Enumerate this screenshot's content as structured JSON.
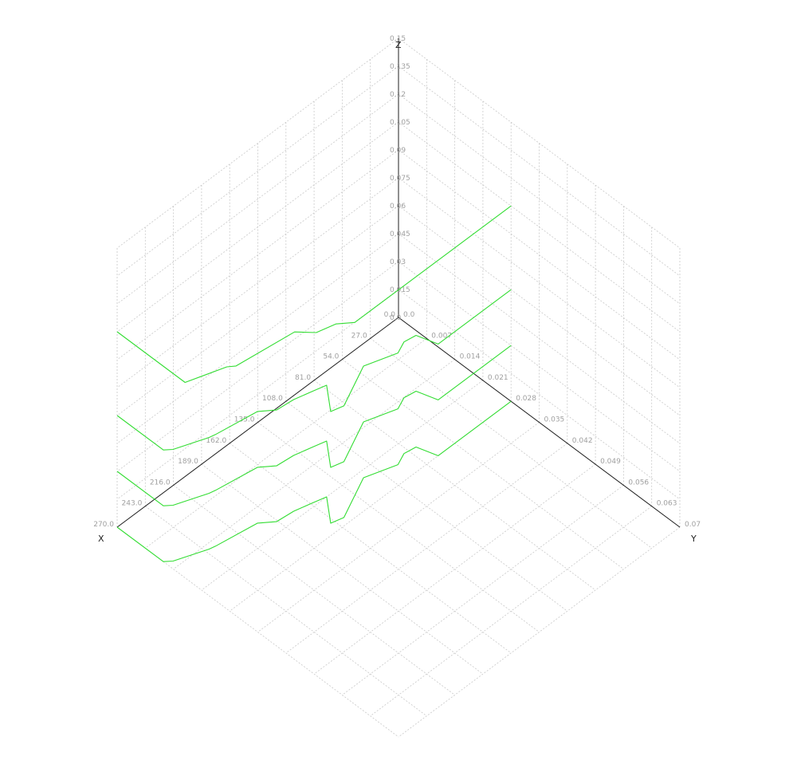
{
  "chart_data": {
    "type": "line",
    "projection": "3d-isometric",
    "axes": {
      "x": {
        "label": "X",
        "range": [
          0,
          270
        ],
        "ticks": [
          "0.0",
          "27.0",
          "54.0",
          "81.0",
          "108.0",
          "135.0",
          "162.0",
          "189.0",
          "216.0",
          "243.0",
          "270.0"
        ]
      },
      "y": {
        "label": "Y",
        "range": [
          0,
          0.07
        ],
        "ticks": [
          "0.0",
          "0.007",
          "0.014",
          "0.021",
          "0.028",
          "0.035",
          "0.042",
          "0.049",
          "0.056",
          "0.063",
          "0.07"
        ]
      },
      "z": {
        "label": "Z",
        "range": [
          0,
          0.15
        ],
        "ticks": [
          "0.0",
          "0.015",
          "0.03",
          "0.045",
          "0.06",
          "0.075",
          "0.09",
          "0.105",
          "0.12",
          "0.135",
          "0.15"
        ]
      }
    },
    "grid": true,
    "line_color": "#33dd33",
    "series": [
      {
        "z": 0.105,
        "points": [
          [
            0,
            0.028
          ],
          [
            150,
            0.028
          ],
          [
            160,
            0.0259
          ],
          [
            175,
            0.0249
          ],
          [
            185,
            0.0221
          ],
          [
            235,
            0.0205
          ],
          [
            240,
            0.0195
          ],
          [
            270,
            0.0169
          ],
          [
            270,
            0
          ]
        ]
      },
      {
        "z": 0.06,
        "points": [
          [
            0,
            0.028
          ],
          [
            70,
            0.028
          ],
          [
            75,
            0.0238
          ],
          [
            85,
            0.0234
          ],
          [
            95,
            0.0245
          ],
          [
            120,
            0.0224
          ],
          [
            155,
            0.0266
          ],
          [
            165,
            0.0259
          ],
          [
            150,
            0.021
          ],
          [
            160,
            0.0203
          ],
          [
            175,
            0.0193
          ],
          [
            190,
            0.0189
          ],
          [
            200,
            0.0168
          ],
          [
            235,
            0.0154
          ],
          [
            240,
            0.0151
          ],
          [
            265,
            0.0126
          ],
          [
            270,
            0.0115
          ],
          [
            270,
            0
          ]
        ]
      },
      {
        "z": 0.03,
        "points": [
          [
            0,
            0.028
          ],
          [
            70,
            0.028
          ],
          [
            75,
            0.0238
          ],
          [
            85,
            0.0234
          ],
          [
            95,
            0.0245
          ],
          [
            120,
            0.0224
          ],
          [
            155,
            0.0266
          ],
          [
            165,
            0.0259
          ],
          [
            150,
            0.021
          ],
          [
            160,
            0.0203
          ],
          [
            175,
            0.0193
          ],
          [
            190,
            0.0189
          ],
          [
            200,
            0.0168
          ],
          [
            235,
            0.0154
          ],
          [
            240,
            0.0151
          ],
          [
            265,
            0.0126
          ],
          [
            270,
            0.0115
          ],
          [
            270,
            0
          ]
        ]
      },
      {
        "z": 0.0,
        "points": [
          [
            0,
            0.028
          ],
          [
            70,
            0.028
          ],
          [
            75,
            0.0238
          ],
          [
            85,
            0.0234
          ],
          [
            95,
            0.0245
          ],
          [
            120,
            0.0224
          ],
          [
            155,
            0.0266
          ],
          [
            165,
            0.0259
          ],
          [
            150,
            0.021
          ],
          [
            160,
            0.0203
          ],
          [
            175,
            0.0193
          ],
          [
            190,
            0.0189
          ],
          [
            200,
            0.0168
          ],
          [
            235,
            0.0154
          ],
          [
            240,
            0.0151
          ],
          [
            265,
            0.0126
          ],
          [
            270,
            0.0115
          ],
          [
            270,
            0
          ]
        ]
      }
    ]
  }
}
